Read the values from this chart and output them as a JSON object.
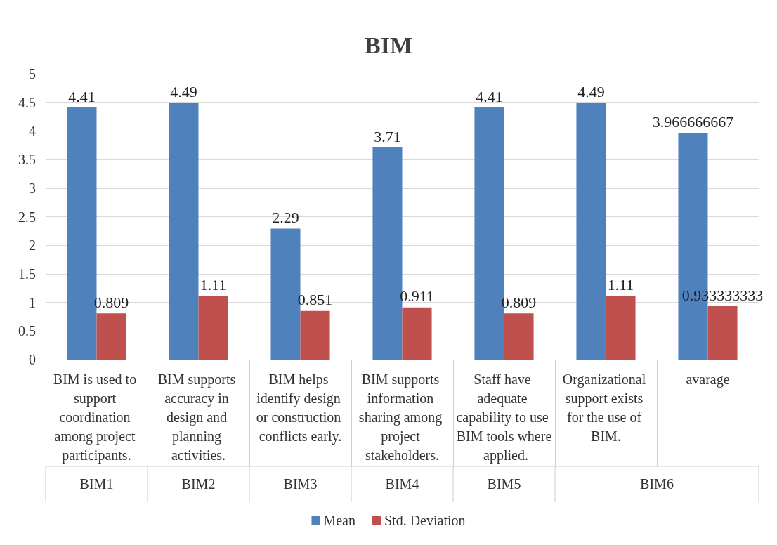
{
  "chart_data": {
    "type": "bar",
    "title": "BIM",
    "categories": [
      "BIM is used to support coordination among project participants.",
      "BIM supports accuracy in design and planning activities.",
      "BIM helps identify design or construction conflicts early.",
      "BIM supports information sharing among project stakeholders.",
      "Staff have adequate capability to use BIM tools where applied.",
      "Organizational support exists for the use of BIM.",
      "avarage"
    ],
    "series": [
      {
        "name": "Mean",
        "color": "#4f81bd",
        "values": [
          4.41,
          4.49,
          2.29,
          3.71,
          4.41,
          4.49,
          3.966666667
        ]
      },
      {
        "name": "Std. Deviation",
        "color": "#c0504d",
        "values": [
          0.809,
          1.11,
          0.851,
          0.911,
          0.809,
          1.11,
          0.933333333
        ]
      }
    ],
    "ylim": [
      0,
      5
    ],
    "yticks": [
      0,
      0.5,
      1,
      1.5,
      2,
      2.5,
      3,
      3.5,
      4,
      4.5,
      5
    ],
    "annotations": [
      "BIM1",
      "BIM2",
      "BIM3",
      "BIM4",
      "BIM5",
      "BIM6"
    ],
    "data_labels": true,
    "grid": "y",
    "legend": "bottom"
  }
}
